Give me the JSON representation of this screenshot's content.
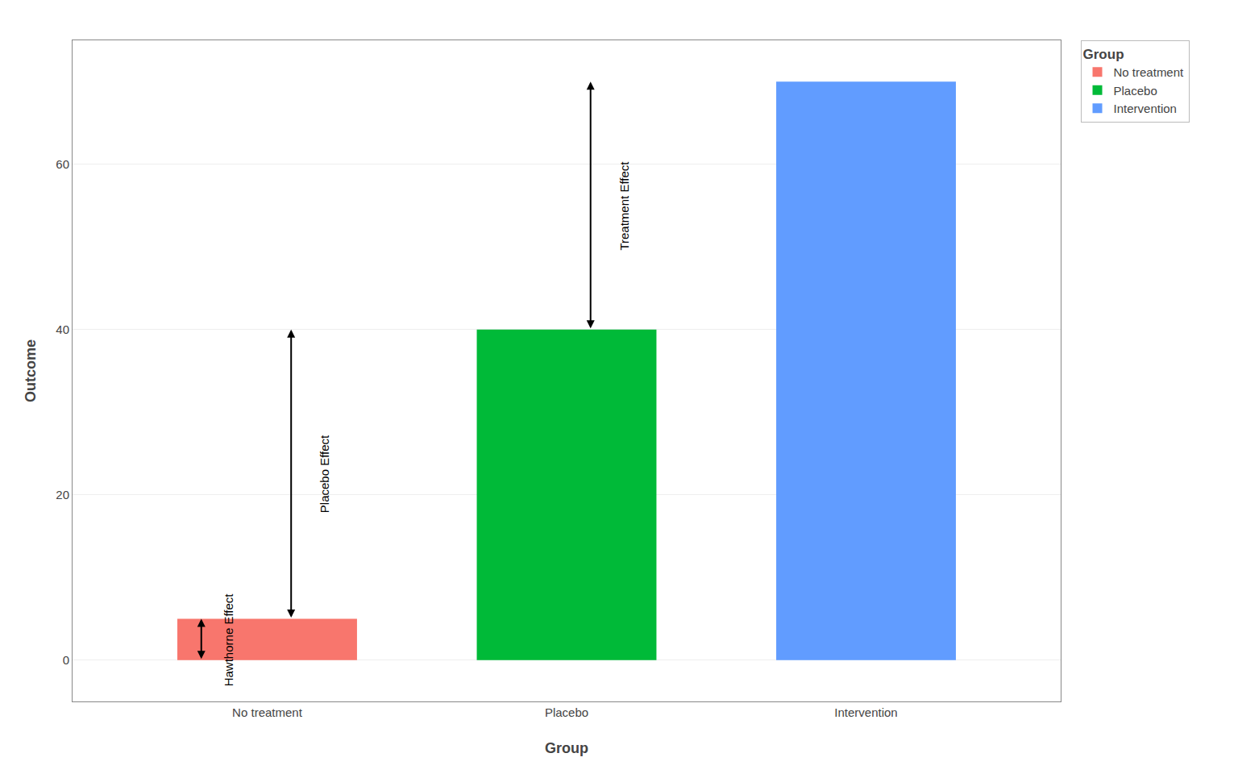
{
  "chart_data": {
    "type": "bar",
    "xlabel": "Group",
    "ylabel": "Outcome",
    "categories": [
      "No treatment",
      "Placebo",
      "Intervention"
    ],
    "values": [
      5,
      40,
      70
    ],
    "colors": [
      "#F8766D",
      "#00BA38",
      "#619CFF"
    ],
    "ylim": [
      -5,
      75
    ],
    "yticks": [
      0,
      20,
      40,
      60
    ],
    "grid": true,
    "legend": "right",
    "legend_title": "Group",
    "annotations": [
      {
        "text": "Hawthorne Effect",
        "category": "No treatment",
        "y0": 0,
        "y1": 5
      },
      {
        "text": "Placebo Effect",
        "category": "No treatment",
        "y0": 5,
        "y1": 40
      },
      {
        "text": "Treatment Effect",
        "category": "Placebo",
        "y0": 40,
        "y1": 70
      }
    ]
  }
}
